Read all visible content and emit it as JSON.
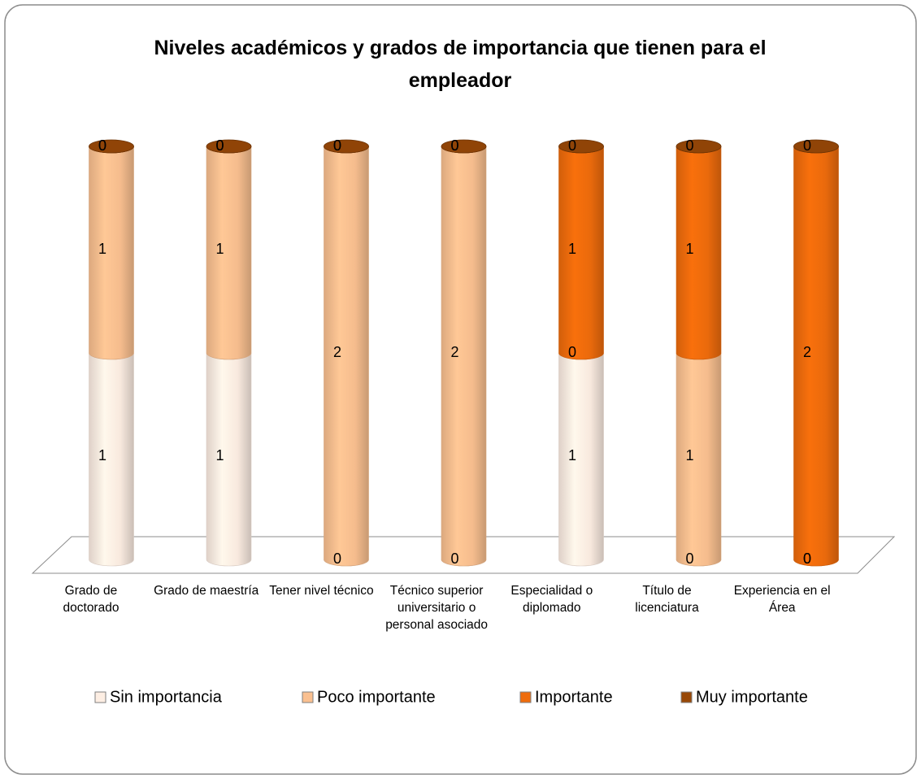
{
  "chart_data": {
    "type": "stacked_cylinder",
    "title": "Niveles académicos y grados de importancia que tienen para el empleador",
    "categories": [
      "Grado de doctorado",
      "Grado de maestría",
      "Tener nivel técnico",
      "Técnico superior universitario o personal asociado",
      "Especialidad o diplomado",
      "Título de licenciatura",
      "Experiencia en el Área"
    ],
    "series": [
      {
        "name": "Sin importancia",
        "color": "#fdeee3",
        "values": [
          1,
          1,
          0,
          0,
          1,
          0,
          0
        ]
      },
      {
        "name": "Poco importante",
        "color": "#fac090",
        "values": [
          1,
          1,
          2,
          2,
          0,
          1,
          0
        ]
      },
      {
        "name": "Importante",
        "color": "#ef6c0c",
        "values": [
          0,
          0,
          0,
          0,
          1,
          1,
          2
        ]
      },
      {
        "name": "Muy importante",
        "color": "#984807",
        "values": [
          0,
          0,
          0,
          0,
          0,
          0,
          0
        ]
      }
    ],
    "legend": "bottom"
  }
}
